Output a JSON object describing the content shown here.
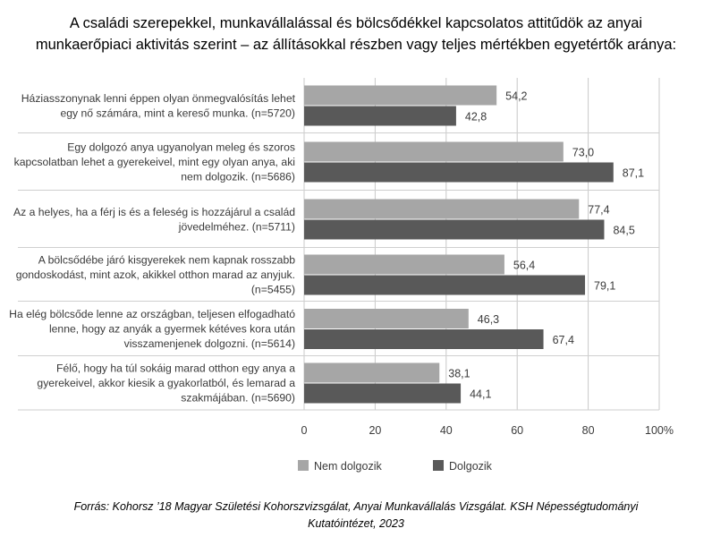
{
  "title_lines": [
    "A családi szerepekkel, munkavállalással és bölcsődékkel kapcsolatos attitűdök az anyai",
    "munkaerőpiaci aktivitás szerint – az állításokkal részben vagy teljes mértékben egyetértők aránya:"
  ],
  "source_lines": [
    "Forrás: Kohorsz ’18 Magyar Születési Kohorszvizsgálat, Anyai Munkavállalás Vizsgálat. KSH Népességtudományi",
    "Kutatóintézet, 2023"
  ],
  "colors": {
    "nem_dolgozik": "#a6a6a6",
    "dolgozik": "#595959",
    "grid": "#c8c8c8",
    "row_sep": "#cfcfcf"
  },
  "chart_data": {
    "type": "bar",
    "orientation": "horizontal",
    "categories": [
      [
        "Háziasszonynak lenni éppen olyan önmegvalósítás lehet",
        "egy nő számára, mint a kereső munka. (n=5720)"
      ],
      [
        "Egy dolgozó anya ugyanolyan meleg és szoros",
        "kapcsolatban lehet a gyerekeivel, mint egy olyan anya, aki",
        "nem dolgozik. (n=5686)"
      ],
      [
        "Az a helyes, ha a férj is és a feleség is hozzájárul a család",
        "jövedelméhez. (n=5711)"
      ],
      [
        "A bölcsődébe járó kisgyerekek nem kapnak rosszabb",
        "gondoskodást, mint azok, akikkel otthon marad az anyjuk.",
        "(n=5455)"
      ],
      [
        "Ha elég bölcsőde lenne az országban, teljesen elfogadható",
        "lenne, hogy az anyák a gyermek kétéves kora után",
        "visszamenjenek dolgozni. (n=5614)"
      ],
      [
        "Félő, hogy ha túl sokáig marad otthon egy anya a",
        "gyerekeivel, akkor kiesik a gyakorlatból, és lemarad a",
        "szakmájában. (n=5690)"
      ]
    ],
    "series": [
      {
        "name": "Nem dolgozik",
        "values": [
          54.2,
          73.0,
          77.4,
          56.4,
          46.3,
          38.1
        ],
        "labels": [
          "54,2",
          "73,0",
          "77,4",
          "56,4",
          "46,3",
          "38,1"
        ]
      },
      {
        "name": "Dolgozik",
        "values": [
          42.8,
          87.1,
          84.5,
          79.1,
          67.4,
          44.1
        ],
        "labels": [
          "42,8",
          "87,1",
          "84,5",
          "79,1",
          "67,4",
          "44,1"
        ]
      }
    ],
    "xlim": [
      0,
      100
    ],
    "xticks": [
      "0",
      "20",
      "40",
      "60",
      "80",
      "100%"
    ],
    "grid": true,
    "legend_position": "bottom-left"
  }
}
